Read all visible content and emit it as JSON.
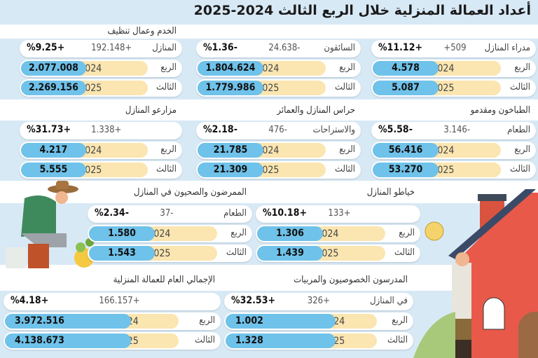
{
  "title": "أعداد العمالة المنزلية خلال الربع الثالث 2024-2025",
  "row_labels": {
    "q2024": "الربع",
    "q2025": "الثالث"
  },
  "years": {
    "y2024": "2024",
    "y2025": "2025"
  },
  "colors": {
    "band": "#d8e9f6",
    "value_pill": "#6fc2ea",
    "year_pill": "#fbe5b0",
    "house": "#e8594a"
  },
  "cards": [
    {
      "title": "",
      "label": "مدراء المنازل",
      "change": "+509",
      "percent": "%11.12+",
      "v2024": "4.578",
      "v2025": "5.087"
    },
    {
      "title": "",
      "label": "السائقون",
      "change": "24.638-",
      "percent": "%1.36-",
      "v2024": "1.804.624",
      "v2025": "1.779.986"
    },
    {
      "title": "الخدم وعمال تنظيف",
      "label": "المنازل",
      "change": "192.148+",
      "percent": "%9.25+",
      "v2024": "2.077.008",
      "v2025": "2.269.156"
    },
    {
      "title": "الطباخون ومقدمو",
      "label": "الطعام",
      "change": "3.146-",
      "percent": "%5.58-",
      "v2024": "56.416",
      "v2025": "53.270"
    },
    {
      "title": "حراس المنازل والعمائر",
      "label": "والاستراحات",
      "change": "476-",
      "percent": "%2.18-",
      "v2024": "21.785",
      "v2025": "21.309"
    },
    {
      "title": "مزارعو المنازل",
      "label": "",
      "change": "1.338+",
      "percent": "%31.73+",
      "v2024": "4.217",
      "v2025": "5.555"
    },
    {
      "title": "خياطو المنازل",
      "label": "",
      "change": "133+",
      "percent": "%10.18+",
      "v2024": "1.306",
      "v2025": "1.439"
    },
    {
      "title": "الممرضون والصحيون في المنازل",
      "label": "الطعام",
      "change": "37-",
      "percent": "%2.34-",
      "v2024": "1.580",
      "v2025": "1.543"
    },
    {
      "title": "المدرسون الخصوصيون والمربيات",
      "label": "في المنازل",
      "change": "326+",
      "percent": "%32.53+",
      "v2024": "1.002",
      "v2025": "1.328"
    },
    {
      "title": "الإجمالي العام للعمالة المنزلية",
      "label": "",
      "change": "166.157+",
      "percent": "%4.18+",
      "v2024": "3.972.516",
      "v2025": "4.138.673"
    }
  ]
}
